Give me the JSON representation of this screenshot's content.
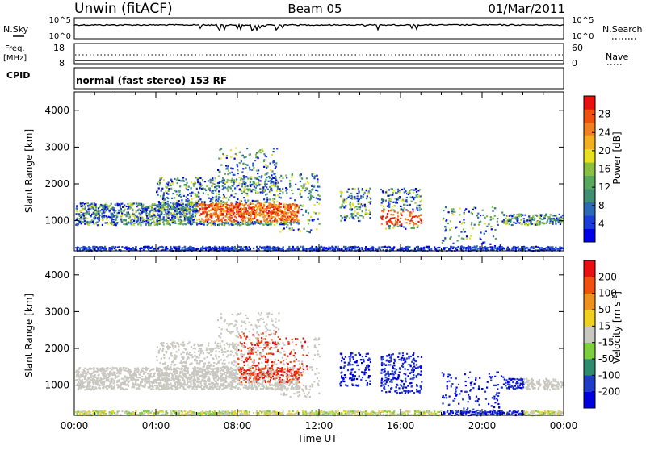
{
  "header": {
    "station": "Unwin (fitACF)",
    "beam": "Beam 05",
    "date": "01/Mar/2011"
  },
  "noise_panel": {
    "left_label": "N.Sky",
    "left_ticks": [
      "10^5",
      "10^0"
    ],
    "right_ticks": [
      "10^5",
      "10^0"
    ],
    "right_label": "N.Search"
  },
  "freq_panel": {
    "left_label_1": "Freq.",
    "left_label_2": "[MHz]",
    "left_ticks": [
      "18",
      "8"
    ],
    "right_ticks": [
      "60",
      "0"
    ],
    "right_label": "Nave"
  },
  "cpid_panel": {
    "label": "CPID",
    "mode": "normal (fast stereo) 153 RF"
  },
  "chart_data": [
    {
      "type": "heatmap",
      "parameter": "Power",
      "ylabel": "Slant Range [km]",
      "ylim": [
        180,
        4500
      ],
      "yticks": [
        "1000",
        "2000",
        "3000",
        "4000"
      ],
      "xlim": [
        "00:00",
        "24:00"
      ],
      "colorbar": {
        "label": "Power [dB]",
        "ticks": [
          "28",
          "24",
          "20",
          "16",
          "12",
          "8",
          "4"
        ],
        "colors": [
          "#0000e6",
          "#1a3ed8",
          "#2c6ab8",
          "#3f9070",
          "#58a860",
          "#88c040",
          "#e8e020",
          "#f0b020",
          "#f08020",
          "#f05010",
          "#e81010"
        ]
      }
    },
    {
      "type": "heatmap",
      "parameter": "Velocity",
      "ylabel": "Slant Range [km]",
      "ylim": [
        180,
        4500
      ],
      "yticks": [
        "1000",
        "2000",
        "3000",
        "4000"
      ],
      "xlim": [
        "00:00",
        "24:00"
      ],
      "colorbar": {
        "label": "Velocity [m s^-1]",
        "ticks": [
          "200",
          "100",
          "50",
          "15",
          "-15",
          "-50",
          "-100",
          "-200"
        ],
        "colors": [
          "#0000dc",
          "#1e3cc8",
          "#2e8c6e",
          "#7cd040",
          "#c8c8c0",
          "#f0d020",
          "#f09020",
          "#f05010",
          "#e81010"
        ]
      }
    }
  ],
  "x_axis": {
    "label": "Time UT",
    "ticks": [
      "00:00",
      "04:00",
      "08:00",
      "12:00",
      "16:00",
      "20:00",
      "00:00"
    ]
  }
}
